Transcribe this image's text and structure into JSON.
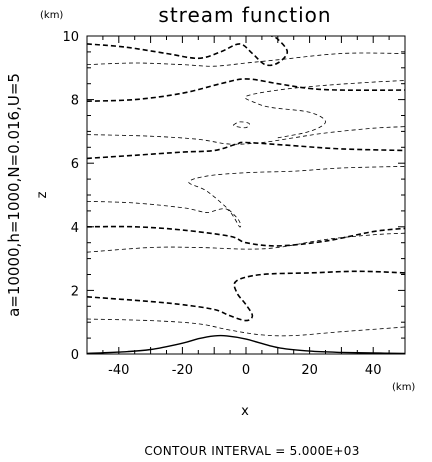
{
  "chart_data": {
    "type": "contour",
    "title": "stream function",
    "xlabel": "x",
    "ylabel": "z",
    "x_unit": "(km)",
    "y_unit": "(km)",
    "xlim": [
      -50,
      50
    ],
    "ylim": [
      0,
      10
    ],
    "xticks": [
      "-40",
      "-20",
      "0",
      "20",
      "40"
    ],
    "yticks": [
      "0",
      "2",
      "4",
      "6",
      "8",
      "10"
    ],
    "side_label": "a=10000,h=1000,N=0.016,U=5",
    "footer": "CONTOUR INTERVAL = 5.000E+03",
    "terrain": [
      {
        "x": -50,
        "z": 0.02
      },
      {
        "x": -40,
        "z": 0.06
      },
      {
        "x": -30,
        "z": 0.14
      },
      {
        "x": -20,
        "z": 0.34
      },
      {
        "x": -15,
        "z": 0.48
      },
      {
        "x": -10,
        "z": 0.57
      },
      {
        "x": -6,
        "z": 0.57
      },
      {
        "x": 0,
        "z": 0.47
      },
      {
        "x": 10,
        "z": 0.2
      },
      {
        "x": 20,
        "z": 0.09
      },
      {
        "x": 30,
        "z": 0.05
      },
      {
        "x": 40,
        "z": 0.03
      },
      {
        "x": 50,
        "z": 0.02
      }
    ],
    "contours": [
      {
        "style": "thin",
        "points": [
          [
            -50,
            1.1
          ],
          [
            -30,
            1.05
          ],
          [
            -15,
            0.95
          ],
          [
            -5,
            0.75
          ],
          [
            5,
            0.6
          ],
          [
            15,
            0.58
          ],
          [
            30,
            0.7
          ],
          [
            50,
            0.85
          ]
        ]
      },
      {
        "style": "thick",
        "points": [
          [
            -50,
            1.8
          ],
          [
            -30,
            1.65
          ],
          [
            -20,
            1.55
          ],
          [
            -10,
            1.4
          ],
          [
            -5,
            1.2
          ],
          [
            0,
            1.05
          ],
          [
            2,
            1.2
          ],
          [
            0,
            1.55
          ],
          [
            -3,
            1.95
          ],
          [
            -3,
            2.3
          ],
          [
            5,
            2.5
          ],
          [
            20,
            2.55
          ],
          [
            35,
            2.6
          ],
          [
            50,
            2.55
          ]
        ]
      },
      {
        "style": "thin",
        "points": [
          [
            -50,
            3.2
          ],
          [
            -30,
            3.35
          ],
          [
            -15,
            3.35
          ],
          [
            0,
            3.3
          ],
          [
            10,
            3.35
          ],
          [
            25,
            3.6
          ],
          [
            40,
            3.75
          ],
          [
            50,
            3.8
          ]
        ]
      },
      {
        "style": "thick",
        "points": [
          [
            -50,
            4.0
          ],
          [
            -35,
            4.0
          ],
          [
            -20,
            3.9
          ],
          [
            -5,
            3.7
          ],
          [
            0,
            3.5
          ],
          [
            10,
            3.4
          ],
          [
            25,
            3.55
          ],
          [
            40,
            3.85
          ],
          [
            50,
            3.95
          ]
        ]
      },
      {
        "style": "thin",
        "points": [
          [
            -50,
            4.8
          ],
          [
            -35,
            4.75
          ],
          [
            -20,
            4.6
          ],
          [
            -15,
            4.5
          ],
          [
            -12,
            4.45
          ],
          [
            -6,
            4.55
          ],
          [
            -2,
            4.0
          ],
          [
            -3,
            4.3
          ],
          [
            -12,
            5.1
          ],
          [
            -18,
            5.4
          ],
          [
            -12,
            5.6
          ],
          [
            0,
            5.7
          ],
          [
            15,
            5.75
          ],
          [
            30,
            5.85
          ],
          [
            50,
            5.9
          ]
        ]
      },
      {
        "style": "thick",
        "points": [
          [
            -50,
            6.15
          ],
          [
            -35,
            6.25
          ],
          [
            -20,
            6.35
          ],
          [
            -10,
            6.4
          ],
          [
            -3,
            6.6
          ],
          [
            0,
            6.65
          ],
          [
            15,
            6.55
          ],
          [
            30,
            6.45
          ],
          [
            50,
            6.4
          ]
        ]
      },
      {
        "style": "thin",
        "points": [
          [
            -50,
            6.9
          ],
          [
            -30,
            6.85
          ],
          [
            -15,
            6.75
          ],
          [
            -5,
            6.6
          ],
          [
            5,
            6.65
          ],
          [
            15,
            6.8
          ],
          [
            25,
            6.95
          ],
          [
            40,
            7.1
          ],
          [
            50,
            7.15
          ]
        ]
      },
      {
        "style": "thin",
        "points": [
          [
            10,
            6.8
          ],
          [
            20,
            7.0
          ],
          [
            25,
            7.3
          ],
          [
            20,
            7.6
          ],
          [
            8,
            7.75
          ],
          [
            3,
            7.9
          ],
          [
            0,
            8.1
          ],
          [
            10,
            8.3
          ],
          [
            25,
            8.45
          ],
          [
            40,
            8.55
          ],
          [
            50,
            8.6
          ]
        ]
      },
      {
        "style": "thick",
        "points": [
          [
            -50,
            7.95
          ],
          [
            -35,
            8.0
          ],
          [
            -20,
            8.2
          ],
          [
            -8,
            8.5
          ],
          [
            0,
            8.65
          ],
          [
            10,
            8.5
          ],
          [
            20,
            8.35
          ],
          [
            30,
            8.3
          ],
          [
            50,
            8.3
          ]
        ]
      },
      {
        "style": "thin",
        "points": [
          [
            -50,
            9.1
          ],
          [
            -35,
            9.15
          ],
          [
            -20,
            9.1
          ],
          [
            -10,
            9.05
          ],
          [
            0,
            9.15
          ],
          [
            10,
            9.25
          ],
          [
            30,
            9.45
          ],
          [
            50,
            9.45
          ]
        ]
      },
      {
        "style": "thick",
        "points": [
          [
            -50,
            9.75
          ],
          [
            -38,
            9.65
          ],
          [
            -25,
            9.45
          ],
          [
            -15,
            9.3
          ],
          [
            -8,
            9.5
          ],
          [
            -2,
            9.75
          ],
          [
            2,
            9.45
          ],
          [
            6,
            9.1
          ],
          [
            10,
            9.15
          ],
          [
            13,
            9.5
          ],
          [
            10,
            9.9
          ],
          [
            8,
            10.0
          ]
        ]
      },
      {
        "style": "thin",
        "points": [
          [
            -4,
            7.2
          ],
          [
            -2,
            7.3
          ],
          [
            1,
            7.25
          ],
          [
            0,
            7.12
          ],
          [
            -3,
            7.15
          ],
          [
            -4,
            7.2
          ]
        ]
      }
    ]
  }
}
